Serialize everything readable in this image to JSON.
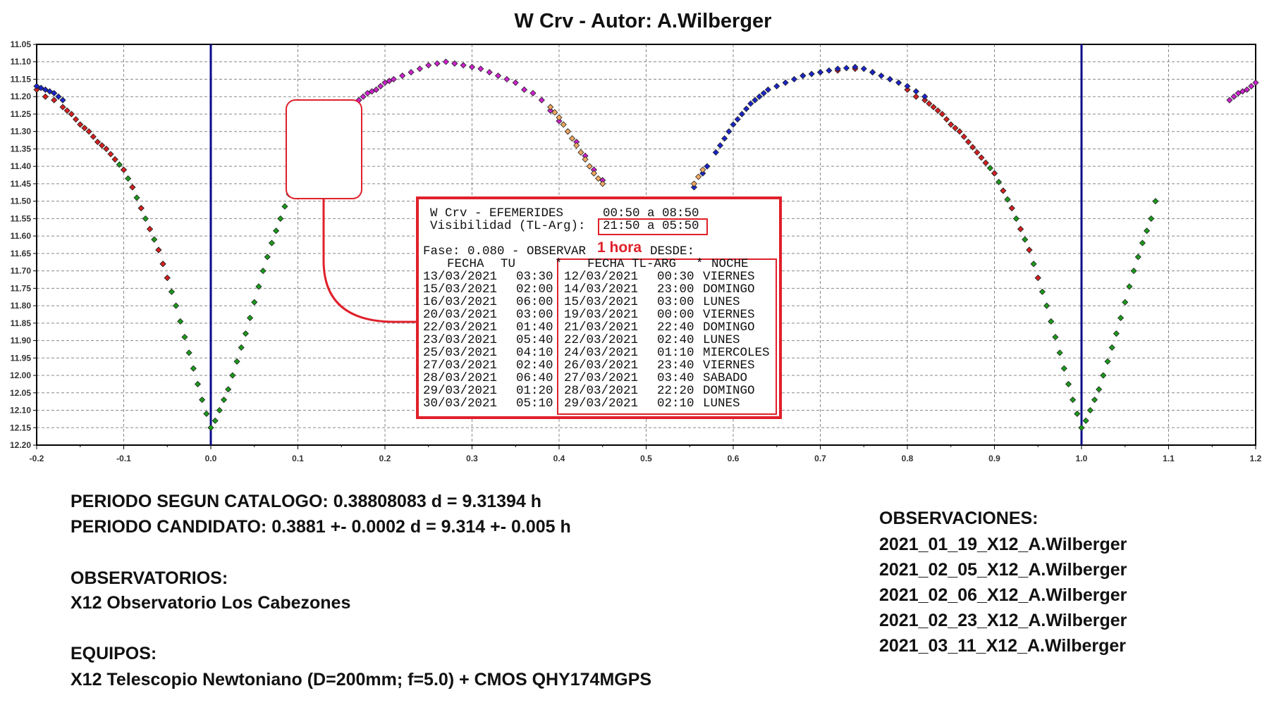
{
  "title": "W Crv - Autor: A.Wilberger",
  "chart_data": {
    "type": "scatter",
    "title": "W Crv - Autor: A.Wilberger",
    "xlabel": "",
    "ylabel": "",
    "xlim": [
      -0.2,
      1.2
    ],
    "ylim": [
      12.2,
      11.05
    ],
    "y_inverted": true,
    "grid": true,
    "grid_style": "dashed",
    "x_ticks": [
      "-0.2",
      "-0.1",
      "0.0",
      "0.1",
      "0.2",
      "0.3",
      "0.4",
      "0.5",
      "0.6",
      "0.7",
      "0.8",
      "0.9",
      "1.0",
      "1.1",
      "1.2"
    ],
    "y_ticks": [
      "11.05",
      "11.10",
      "11.15",
      "11.20",
      "11.25",
      "11.30",
      "11.35",
      "11.40",
      "11.45",
      "11.50",
      "11.55",
      "11.60",
      "11.65",
      "11.70",
      "11.75",
      "11.80",
      "11.85",
      "11.90",
      "11.95",
      "12.00",
      "12.05",
      "12.10",
      "12.15",
      "12.20"
    ],
    "vertical_lines": [
      {
        "x": 0.0,
        "color": "#0a0a8a"
      },
      {
        "x": 1.0,
        "color": "#0a0a8a"
      }
    ],
    "series": [
      {
        "color": "#1a9a1a",
        "points": [
          [
            -0.11,
            11.38
          ],
          [
            -0.105,
            11.395
          ],
          [
            -0.1,
            11.41
          ],
          [
            -0.095,
            11.435
          ],
          [
            -0.09,
            11.46
          ],
          [
            -0.085,
            11.49
          ],
          [
            -0.08,
            11.52
          ],
          [
            -0.075,
            11.55
          ],
          [
            -0.07,
            11.58
          ],
          [
            -0.065,
            11.61
          ],
          [
            -0.06,
            11.64
          ],
          [
            -0.055,
            11.68
          ],
          [
            -0.05,
            11.72
          ],
          [
            -0.045,
            11.76
          ],
          [
            -0.04,
            11.8
          ],
          [
            -0.035,
            11.845
          ],
          [
            -0.03,
            11.89
          ],
          [
            -0.025,
            11.935
          ],
          [
            -0.02,
            11.98
          ],
          [
            -0.015,
            12.025
          ],
          [
            -0.01,
            12.07
          ],
          [
            -0.005,
            12.11
          ],
          [
            0.0,
            12.15
          ],
          [
            0.005,
            12.13
          ],
          [
            0.01,
            12.1
          ],
          [
            0.015,
            12.07
          ],
          [
            0.02,
            12.04
          ],
          [
            0.025,
            12.0
          ],
          [
            0.03,
            11.96
          ],
          [
            0.035,
            11.92
          ],
          [
            0.04,
            11.88
          ],
          [
            0.045,
            11.835
          ],
          [
            0.05,
            11.79
          ],
          [
            0.055,
            11.745
          ],
          [
            0.06,
            11.7
          ],
          [
            0.065,
            11.66
          ],
          [
            0.07,
            11.62
          ],
          [
            0.075,
            11.585
          ],
          [
            0.08,
            11.55
          ],
          [
            0.085,
            11.515
          ],
          [
            0.09,
            11.48
          ],
          [
            0.89,
            11.39
          ],
          [
            0.895,
            11.405
          ],
          [
            0.9,
            11.42
          ],
          [
            0.905,
            11.445
          ],
          [
            0.91,
            11.47
          ],
          [
            0.915,
            11.495
          ],
          [
            0.92,
            11.52
          ],
          [
            0.925,
            11.55
          ],
          [
            0.93,
            11.58
          ],
          [
            0.935,
            11.61
          ],
          [
            0.94,
            11.64
          ],
          [
            0.945,
            11.68
          ],
          [
            0.95,
            11.72
          ],
          [
            0.955,
            11.76
          ],
          [
            0.96,
            11.8
          ],
          [
            0.965,
            11.845
          ],
          [
            0.97,
            11.89
          ],
          [
            0.975,
            11.935
          ],
          [
            0.98,
            11.98
          ],
          [
            0.985,
            12.025
          ],
          [
            0.99,
            12.07
          ],
          [
            0.995,
            12.11
          ],
          [
            1.0,
            12.15
          ],
          [
            1.005,
            12.13
          ],
          [
            1.01,
            12.1
          ],
          [
            1.015,
            12.07
          ],
          [
            1.02,
            12.04
          ],
          [
            1.025,
            12.0
          ],
          [
            1.03,
            11.96
          ],
          [
            1.035,
            11.92
          ],
          [
            1.04,
            11.88
          ],
          [
            1.045,
            11.835
          ],
          [
            1.05,
            11.79
          ],
          [
            1.055,
            11.745
          ],
          [
            1.06,
            11.7
          ],
          [
            1.065,
            11.66
          ],
          [
            1.07,
            11.62
          ],
          [
            1.075,
            11.585
          ],
          [
            1.08,
            11.55
          ],
          [
            1.085,
            11.5
          ]
        ]
      },
      {
        "color": "#d42020",
        "points": [
          [
            -0.2,
            11.18
          ],
          [
            -0.19,
            11.2
          ],
          [
            -0.18,
            11.21
          ],
          [
            -0.17,
            11.23
          ],
          [
            -0.165,
            11.24
          ],
          [
            -0.16,
            11.25
          ],
          [
            -0.155,
            11.265
          ],
          [
            -0.15,
            11.28
          ],
          [
            -0.145,
            11.29
          ],
          [
            -0.14,
            11.3
          ],
          [
            -0.135,
            11.315
          ],
          [
            -0.13,
            11.33
          ],
          [
            -0.125,
            11.34
          ],
          [
            -0.12,
            11.35
          ],
          [
            -0.115,
            11.365
          ],
          [
            -0.11,
            11.38
          ],
          [
            -0.1,
            11.41
          ],
          [
            -0.09,
            11.46
          ],
          [
            -0.08,
            11.52
          ],
          [
            -0.07,
            11.58
          ],
          [
            -0.06,
            11.64
          ],
          [
            -0.055,
            11.68
          ],
          [
            -0.05,
            11.72
          ],
          [
            0.68,
            11.14
          ],
          [
            0.7,
            11.13
          ],
          [
            0.72,
            11.125
          ],
          [
            0.74,
            11.12
          ],
          [
            0.76,
            11.13
          ],
          [
            0.78,
            11.15
          ],
          [
            0.8,
            11.18
          ],
          [
            0.81,
            11.2
          ],
          [
            0.82,
            11.21
          ],
          [
            0.825,
            11.22
          ],
          [
            0.83,
            11.23
          ],
          [
            0.835,
            11.24
          ],
          [
            0.84,
            11.25
          ],
          [
            0.845,
            11.265
          ],
          [
            0.85,
            11.28
          ],
          [
            0.855,
            11.29
          ],
          [
            0.86,
            11.3
          ],
          [
            0.865,
            11.315
          ],
          [
            0.87,
            11.33
          ],
          [
            0.875,
            11.345
          ],
          [
            0.88,
            11.36
          ],
          [
            0.885,
            11.375
          ],
          [
            0.89,
            11.39
          ],
          [
            0.9,
            11.42
          ],
          [
            0.91,
            11.47
          ],
          [
            0.92,
            11.52
          ],
          [
            0.93,
            11.58
          ],
          [
            0.94,
            11.64
          ],
          [
            0.95,
            11.72
          ]
        ]
      },
      {
        "color": "#1a24c8",
        "points": [
          [
            -0.2,
            11.17
          ],
          [
            -0.195,
            11.175
          ],
          [
            -0.19,
            11.18
          ],
          [
            -0.185,
            11.185
          ],
          [
            -0.18,
            11.19
          ],
          [
            -0.175,
            11.2
          ],
          [
            -0.17,
            11.21
          ],
          [
            0.555,
            11.46
          ],
          [
            0.565,
            11.42
          ],
          [
            0.57,
            11.4
          ],
          [
            0.58,
            11.36
          ],
          [
            0.585,
            11.34
          ],
          [
            0.59,
            11.32
          ],
          [
            0.595,
            11.3
          ],
          [
            0.6,
            11.28
          ],
          [
            0.605,
            11.265
          ],
          [
            0.61,
            11.25
          ],
          [
            0.615,
            11.235
          ],
          [
            0.62,
            11.22
          ],
          [
            0.625,
            11.21
          ],
          [
            0.63,
            11.2
          ],
          [
            0.635,
            11.19
          ],
          [
            0.64,
            11.18
          ],
          [
            0.65,
            11.17
          ],
          [
            0.66,
            11.16
          ],
          [
            0.67,
            11.15
          ],
          [
            0.68,
            11.14
          ],
          [
            0.69,
            11.135
          ],
          [
            0.7,
            11.13
          ],
          [
            0.71,
            11.125
          ],
          [
            0.72,
            11.12
          ],
          [
            0.73,
            11.118
          ],
          [
            0.74,
            11.115
          ],
          [
            0.75,
            11.12
          ],
          [
            0.76,
            11.13
          ],
          [
            0.77,
            11.14
          ],
          [
            0.78,
            11.15
          ],
          [
            0.79,
            11.16
          ],
          [
            0.8,
            11.17
          ],
          [
            0.81,
            11.185
          ],
          [
            0.82,
            11.2
          ]
        ]
      },
      {
        "color": "#cc22cc",
        "points": [
          [
            0.17,
            11.21
          ],
          [
            0.175,
            11.2
          ],
          [
            0.18,
            11.19
          ],
          [
            0.185,
            11.185
          ],
          [
            0.19,
            11.18
          ],
          [
            0.195,
            11.17
          ],
          [
            0.2,
            11.16
          ],
          [
            0.205,
            11.155
          ],
          [
            0.21,
            11.15
          ],
          [
            0.22,
            11.14
          ],
          [
            0.23,
            11.13
          ],
          [
            0.24,
            11.12
          ],
          [
            0.25,
            11.11
          ],
          [
            0.26,
            11.105
          ],
          [
            0.27,
            11.1
          ],
          [
            0.28,
            11.105
          ],
          [
            0.29,
            11.11
          ],
          [
            0.3,
            11.115
          ],
          [
            0.31,
            11.12
          ],
          [
            0.32,
            11.13
          ],
          [
            0.33,
            11.14
          ],
          [
            0.34,
            11.15
          ],
          [
            0.35,
            11.16
          ],
          [
            0.36,
            11.18
          ],
          [
            0.37,
            11.19
          ],
          [
            0.38,
            11.21
          ],
          [
            0.39,
            11.24
          ],
          [
            0.4,
            11.27
          ],
          [
            0.41,
            11.3
          ],
          [
            0.42,
            11.33
          ],
          [
            0.43,
            11.37
          ],
          [
            0.44,
            11.41
          ],
          [
            0.45,
            11.44
          ],
          [
            1.17,
            11.21
          ],
          [
            1.175,
            11.2
          ],
          [
            1.18,
            11.19
          ],
          [
            1.185,
            11.185
          ],
          [
            1.19,
            11.18
          ],
          [
            1.195,
            11.17
          ],
          [
            1.2,
            11.16
          ]
        ]
      },
      {
        "color": "#f0a860",
        "points": [
          [
            0.39,
            11.23
          ],
          [
            0.395,
            11.245
          ],
          [
            0.4,
            11.26
          ],
          [
            0.405,
            11.28
          ],
          [
            0.41,
            11.3
          ],
          [
            0.415,
            11.32
          ],
          [
            0.42,
            11.34
          ],
          [
            0.425,
            11.36
          ],
          [
            0.43,
            11.38
          ],
          [
            0.435,
            11.4
          ],
          [
            0.44,
            11.42
          ],
          [
            0.445,
            11.435
          ],
          [
            0.45,
            11.45
          ],
          [
            0.555,
            11.45
          ],
          [
            0.56,
            11.43
          ],
          [
            0.565,
            11.41
          ]
        ]
      }
    ]
  },
  "ephemeris": {
    "title": "W Crv - EFEMERIDES",
    "range": "00:50 a 08:50",
    "visibility_label": "Visibilidad (TL-Arg):",
    "visibility_range": "21:50 a 05:50",
    "phase_line": "Fase: 0.080 - OBSERVAR",
    "annotation": "1 hora",
    "desde": "DESDE:",
    "headers": {
      "fecha": "FECHA",
      "tu": "TU",
      "star1": "*",
      "fecha_tl": "FECHA TL-ARG",
      "star2": "*",
      "noche": "NOCHE"
    },
    "rows": [
      {
        "fecha": "13/03/2021",
        "tu": "03:30",
        "fecha_tl": "12/03/2021",
        "tl": "00:30",
        "noche": "VIERNES"
      },
      {
        "fecha": "15/03/2021",
        "tu": "02:00",
        "fecha_tl": "14/03/2021",
        "tl": "23:00",
        "noche": "DOMINGO"
      },
      {
        "fecha": "16/03/2021",
        "tu": "06:00",
        "fecha_tl": "15/03/2021",
        "tl": "03:00",
        "noche": "LUNES"
      },
      {
        "fecha": "20/03/2021",
        "tu": "03:00",
        "fecha_tl": "19/03/2021",
        "tl": "00:00",
        "noche": "VIERNES"
      },
      {
        "fecha": "22/03/2021",
        "tu": "01:40",
        "fecha_tl": "21/03/2021",
        "tl": "22:40",
        "noche": "DOMINGO"
      },
      {
        "fecha": "23/03/2021",
        "tu": "05:40",
        "fecha_tl": "22/03/2021",
        "tl": "02:40",
        "noche": "LUNES"
      },
      {
        "fecha": "25/03/2021",
        "tu": "04:10",
        "fecha_tl": "24/03/2021",
        "tl": "01:10",
        "noche": "MIERCOLES"
      },
      {
        "fecha": "27/03/2021",
        "tu": "02:40",
        "fecha_tl": "26/03/2021",
        "tl": "23:40",
        "noche": "VIERNES"
      },
      {
        "fecha": "28/03/2021",
        "tu": "06:40",
        "fecha_tl": "27/03/2021",
        "tl": "03:40",
        "noche": "SABADO"
      },
      {
        "fecha": "29/03/2021",
        "tu": "01:20",
        "fecha_tl": "28/03/2021",
        "tl": "22:20",
        "noche": "DOMINGO"
      },
      {
        "fecha": "30/03/2021",
        "tu": "05:10",
        "fecha_tl": "29/03/2021",
        "tl": "02:10",
        "noche": "LUNES"
      }
    ]
  },
  "info": {
    "periodo_catalogo": "PERIODO SEGUN CATALOGO: 0.38808083 d = 9.31394 h",
    "periodo_candidato": "PERIODO CANDIDATO: 0.3881 +- 0.0002 d = 9.314 +- 0.005 h",
    "observatorios_label": "OBSERVATORIOS:",
    "observatorio": "X12 Observatorio Los Cabezones",
    "equipos_label": "EQUIPOS:",
    "equipo": "X12 Telescopio Newtoniano (D=200mm; f=5.0) + CMOS QHY174MGPS",
    "observaciones_label": "OBSERVACIONES:",
    "observaciones": [
      "2021_01_19_X12_A.Wilberger",
      "2021_02_05_X12_A.Wilberger",
      "2021_02_06_X12_A.Wilberger",
      "2021_02_23_X12_A.Wilberger",
      "2021_03_11_X12_A.Wilberger"
    ]
  },
  "colors": {
    "annotation_red": "#e0202a",
    "phase_line": "#0a0a8a"
  }
}
